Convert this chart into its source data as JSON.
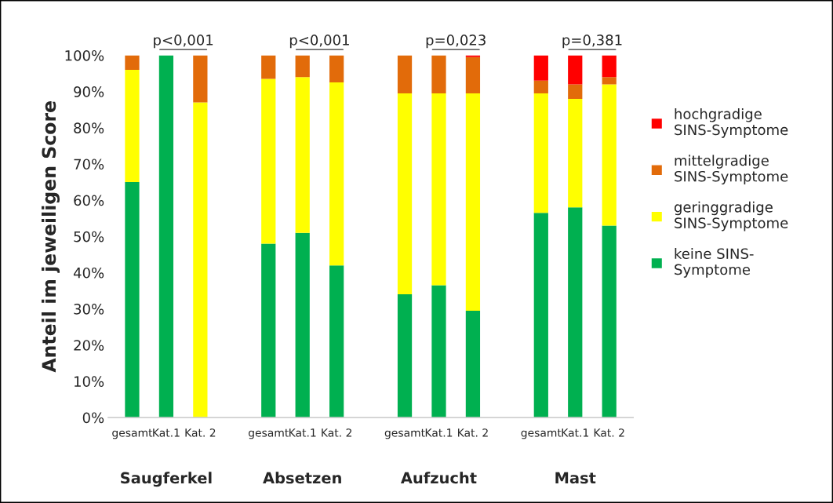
{
  "chart_data": {
    "type": "bar",
    "stacked": true,
    "ylabel": "Anteil im jeweiligen Score",
    "categories": [
      "gesamt",
      "Kat.1",
      "Kat. 2",
      null,
      "gesamt",
      "Kat.1",
      "Kat. 2",
      null,
      "gesamt",
      "Kat.1",
      "Kat. 2",
      null,
      "gesamt",
      "Kat.1",
      "Kat. 2"
    ],
    "series": [
      {
        "name": "keine SINS-\nSymptome",
        "color": "#00b050",
        "values": [
          65,
          100,
          0,
          null,
          48,
          51,
          42,
          null,
          34,
          36.5,
          29.5,
          null,
          56.5,
          58,
          53
        ]
      },
      {
        "name": "geringgradige\nSINS-Symptome",
        "color": "#ffff00",
        "values": [
          31,
          0,
          87,
          null,
          45.5,
          43,
          50.5,
          null,
          55.5,
          53,
          60,
          null,
          33,
          30,
          39
        ]
      },
      {
        "name": "mittelgradige\nSINS-Symptome",
        "color": "#e26b0a",
        "values": [
          4,
          0,
          13,
          null,
          6.5,
          6,
          7.5,
          null,
          10.5,
          10.5,
          10,
          null,
          3.5,
          4,
          2
        ]
      },
      {
        "name": "hochgradige\nSINS-Symptome",
        "color": "#ff0000",
        "values": [
          0,
          0,
          0,
          null,
          0,
          0,
          0,
          null,
          0,
          0,
          0.5,
          null,
          7,
          8,
          6
        ]
      }
    ],
    "ylim": [
      0,
      100
    ],
    "yticks": [
      {
        "value": 0,
        "label": "0%"
      },
      {
        "value": 10,
        "label": "10%"
      },
      {
        "value": 20,
        "label": "20%"
      },
      {
        "value": 30,
        "label": "30%"
      },
      {
        "value": 40,
        "label": "40%"
      },
      {
        "value": 50,
        "label": "50%"
      },
      {
        "value": 60,
        "label": "60%"
      },
      {
        "value": 70,
        "label": "70%"
      },
      {
        "value": 80,
        "label": "80%"
      },
      {
        "value": 90,
        "label": "90%"
      },
      {
        "value": 100,
        "label": "100%"
      }
    ],
    "grid": false,
    "legend": "right",
    "annotations": [
      "p<0,001",
      "p<0,001",
      "p=0,023",
      "p=0,381",
      "Saugferkel",
      "Absetzen",
      "Aufzucht",
      "Mast"
    ]
  }
}
